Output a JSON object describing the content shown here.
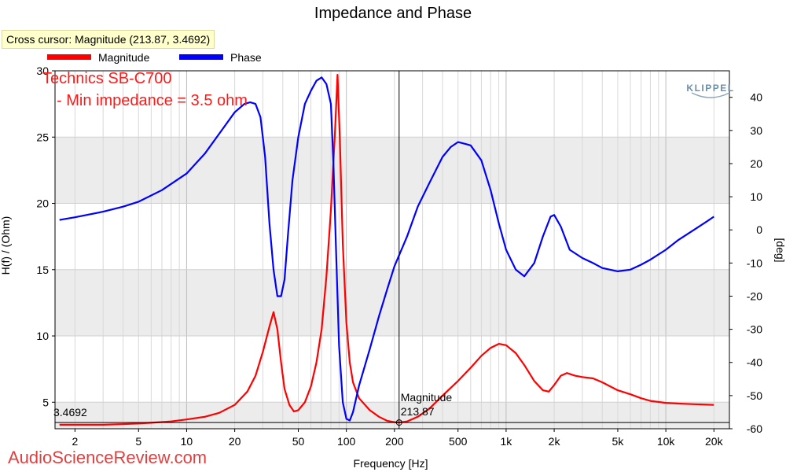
{
  "cursor_readout": "Cross cursor: Magnitude (213.87, 3.4692)",
  "annotations": {
    "model": "Technics SB-C700",
    "min_impedance": "- Min impedance = 3.5 ohm",
    "brand": "KLIPPEL",
    "watermark": "AudioScienceReview.com",
    "cursor_value_left": "3.4692",
    "cursor_label": "Magnitude",
    "cursor_x_value": "213.87"
  },
  "colors": {
    "magnitude": "#ff0000",
    "phase": "#0000ff",
    "plot_band": "#ececec"
  },
  "chart_data": {
    "type": "line",
    "title": "Impedance and Phase",
    "xlabel": "Frequency [Hz]",
    "ylabel_left": "H(f) / (Ohm)",
    "ylabel_right": "[deg]",
    "x_scale": "log",
    "xlim": [
      1.5,
      25000
    ],
    "ylim_left": [
      3,
      30
    ],
    "ylim_right": [
      -60,
      48
    ],
    "grid": true,
    "legend_position": "top-left",
    "x_ticks": [
      {
        "v": 2,
        "label": "2"
      },
      {
        "v": 5,
        "label": "5"
      },
      {
        "v": 10,
        "label": "10"
      },
      {
        "v": 20,
        "label": "20"
      },
      {
        "v": 50,
        "label": "50"
      },
      {
        "v": 100,
        "label": "100"
      },
      {
        "v": 200,
        "label": "200"
      },
      {
        "v": 500,
        "label": "500"
      },
      {
        "v": 1000,
        "label": "1k"
      },
      {
        "v": 2000,
        "label": "2k"
      },
      {
        "v": 5000,
        "label": "5k"
      },
      {
        "v": 10000,
        "label": "10k"
      },
      {
        "v": 20000,
        "label": "20k"
      }
    ],
    "y_ticks_left": [
      5,
      10,
      15,
      20,
      25,
      30
    ],
    "y_ticks_right": [
      -60,
      -50,
      -40,
      -30,
      -20,
      -10,
      0,
      10,
      20,
      30,
      40
    ],
    "cursor": {
      "x": 213.87,
      "y": 3.4692
    },
    "series": [
      {
        "name": "Magnitude",
        "axis": "left",
        "color": "#ff0000",
        "points": [
          [
            1.6,
            3.3
          ],
          [
            2,
            3.3
          ],
          [
            3,
            3.3
          ],
          [
            4,
            3.35
          ],
          [
            5,
            3.4
          ],
          [
            6,
            3.45
          ],
          [
            8,
            3.55
          ],
          [
            10,
            3.7
          ],
          [
            13,
            3.9
          ],
          [
            16,
            4.2
          ],
          [
            20,
            4.8
          ],
          [
            24,
            5.8
          ],
          [
            27,
            7.0
          ],
          [
            30,
            8.8
          ],
          [
            33,
            10.7
          ],
          [
            35,
            11.8
          ],
          [
            37,
            10.5
          ],
          [
            39,
            8.0
          ],
          [
            41,
            6.0
          ],
          [
            44,
            4.8
          ],
          [
            47,
            4.3
          ],
          [
            50,
            4.4
          ],
          [
            55,
            5.0
          ],
          [
            60,
            6.2
          ],
          [
            65,
            8.0
          ],
          [
            70,
            10.5
          ],
          [
            75,
            14.5
          ],
          [
            80,
            19.5
          ],
          [
            85,
            25.5
          ],
          [
            88,
            29.7
          ],
          [
            91,
            25.0
          ],
          [
            95,
            17.0
          ],
          [
            100,
            11.0
          ],
          [
            105,
            8.0
          ],
          [
            110,
            6.5
          ],
          [
            120,
            5.3
          ],
          [
            140,
            4.4
          ],
          [
            160,
            3.9
          ],
          [
            180,
            3.6
          ],
          [
            200,
            3.5
          ],
          [
            214,
            3.47
          ],
          [
            240,
            3.55
          ],
          [
            280,
            3.9
          ],
          [
            330,
            4.5
          ],
          [
            400,
            5.5
          ],
          [
            500,
            6.6
          ],
          [
            600,
            7.6
          ],
          [
            700,
            8.5
          ],
          [
            800,
            9.1
          ],
          [
            900,
            9.4
          ],
          [
            1000,
            9.3
          ],
          [
            1150,
            8.7
          ],
          [
            1300,
            7.8
          ],
          [
            1500,
            6.6
          ],
          [
            1700,
            5.9
          ],
          [
            1850,
            5.8
          ],
          [
            2000,
            6.3
          ],
          [
            2200,
            7.0
          ],
          [
            2400,
            7.2
          ],
          [
            2700,
            7.0
          ],
          [
            3000,
            6.9
          ],
          [
            3500,
            6.8
          ],
          [
            4000,
            6.5
          ],
          [
            5000,
            5.9
          ],
          [
            6000,
            5.6
          ],
          [
            7000,
            5.3
          ],
          [
            8000,
            5.1
          ],
          [
            10000,
            4.95
          ],
          [
            12000,
            4.9
          ],
          [
            15000,
            4.85
          ],
          [
            20000,
            4.8
          ]
        ]
      },
      {
        "name": "Phase",
        "axis": "right",
        "color": "#0000ff",
        "points": [
          [
            1.6,
            3
          ],
          [
            2,
            3.8
          ],
          [
            3,
            5.5
          ],
          [
            4,
            7
          ],
          [
            5,
            8.5
          ],
          [
            7,
            12
          ],
          [
            10,
            17
          ],
          [
            13,
            23
          ],
          [
            16,
            29
          ],
          [
            20,
            35.5
          ],
          [
            23,
            38
          ],
          [
            25,
            38.5
          ],
          [
            27,
            38
          ],
          [
            29,
            34
          ],
          [
            31,
            22
          ],
          [
            33,
            2
          ],
          [
            35,
            -12
          ],
          [
            37,
            -20
          ],
          [
            39,
            -20
          ],
          [
            41,
            -15
          ],
          [
            43,
            -2
          ],
          [
            46,
            15
          ],
          [
            50,
            28
          ],
          [
            55,
            38
          ],
          [
            60,
            42
          ],
          [
            65,
            45
          ],
          [
            70,
            46
          ],
          [
            75,
            44
          ],
          [
            80,
            38
          ],
          [
            83,
            20
          ],
          [
            86,
            -5
          ],
          [
            90,
            -35
          ],
          [
            95,
            -52
          ],
          [
            100,
            -57
          ],
          [
            105,
            -57.5
          ],
          [
            110,
            -55
          ],
          [
            120,
            -47
          ],
          [
            140,
            -36
          ],
          [
            160,
            -26
          ],
          [
            180,
            -18
          ],
          [
            200,
            -11
          ],
          [
            240,
            -2
          ],
          [
            280,
            7
          ],
          [
            330,
            14
          ],
          [
            400,
            22
          ],
          [
            450,
            25
          ],
          [
            500,
            26.5
          ],
          [
            550,
            26
          ],
          [
            600,
            25.5
          ],
          [
            700,
            21
          ],
          [
            800,
            12
          ],
          [
            900,
            2
          ],
          [
            1000,
            -6
          ],
          [
            1150,
            -12
          ],
          [
            1300,
            -14
          ],
          [
            1500,
            -10
          ],
          [
            1700,
            -2
          ],
          [
            1900,
            4
          ],
          [
            2000,
            4.5
          ],
          [
            2200,
            1
          ],
          [
            2500,
            -6
          ],
          [
            3000,
            -8.5
          ],
          [
            3500,
            -10
          ],
          [
            4000,
            -11.5
          ],
          [
            5000,
            -12.5
          ],
          [
            6000,
            -12
          ],
          [
            7000,
            -10.5
          ],
          [
            8000,
            -9
          ],
          [
            10000,
            -6
          ],
          [
            12000,
            -3
          ],
          [
            15000,
            0
          ],
          [
            18000,
            2.5
          ],
          [
            20000,
            4
          ]
        ]
      }
    ]
  }
}
